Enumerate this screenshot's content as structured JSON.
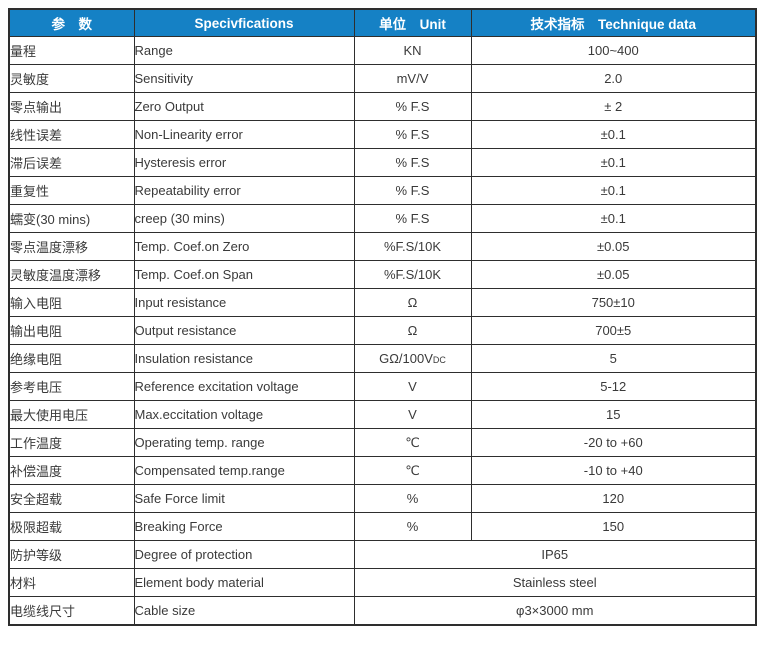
{
  "colors": {
    "header_bg": "#1581c5",
    "header_text": "#ffffff",
    "border": "#2e2e2e",
    "body_text": "#3a3a3a"
  },
  "table": {
    "headers": [
      {
        "label": "参　数"
      },
      {
        "label": "Specivfications"
      },
      {
        "label": "单位　Unit"
      },
      {
        "label": "技术指标　Technique data"
      }
    ],
    "rows": [
      {
        "param_cn": "量程",
        "spec": "Range",
        "unit": "KN",
        "value": "100~400"
      },
      {
        "param_cn": "灵敏度",
        "spec": "Sensitivity",
        "unit": "mV/V",
        "value": "2.0"
      },
      {
        "param_cn": "零点输出",
        "spec": "Zero Output",
        "unit": "% F.S",
        "value": "± 2"
      },
      {
        "param_cn": "线性误差",
        "spec": "Non-Linearity error",
        "unit": "% F.S",
        "value": "±0.1"
      },
      {
        "param_cn": "滞后误差",
        "spec": "Hysteresis error",
        "unit": "% F.S",
        "value": "±0.1"
      },
      {
        "param_cn": "重复性",
        "spec": "Repeatability error",
        "unit": "% F.S",
        "value": "±0.1"
      },
      {
        "param_cn": "蠕变(30 mins)",
        "spec": "creep (30 mins)",
        "unit": "% F.S",
        "value": "±0.1"
      },
      {
        "param_cn": "零点温度漂移",
        "spec": "Temp. Coef.on Zero",
        "unit": "%F.S/10K",
        "value": "±0.05"
      },
      {
        "param_cn": "灵敏度温度漂移",
        "spec": "Temp. Coef.on Span",
        "unit": "%F.S/10K",
        "value": "±0.05"
      },
      {
        "param_cn": "输入电阻",
        "spec": "Input resistance",
        "unit": "Ω",
        "value": "750±10"
      },
      {
        "param_cn": "输出电阻",
        "spec": "Output resistance",
        "unit": "Ω",
        "value": "700±5"
      },
      {
        "param_cn": "绝缘电阻",
        "spec": "Insulation resistance",
        "unit": "GΩ/100V",
        "unit_sub": "DC",
        "value": "5"
      },
      {
        "param_cn": "参考电压",
        "spec": "Reference excitation voltage",
        "unit": "V",
        "value": "5-12"
      },
      {
        "param_cn": "最大使用电压",
        "spec": "Max.eccitation voltage",
        "unit": "V",
        "value": "15"
      },
      {
        "param_cn": "工作温度",
        "spec": "Operating temp. range",
        "unit": "℃",
        "value": "-20 to +60"
      },
      {
        "param_cn": "补偿温度",
        "spec": "Compensated temp.range",
        "unit": "℃",
        "value": "-10 to +40"
      },
      {
        "param_cn": "安全超载",
        "spec": "Safe Force limit",
        "unit": "%",
        "value": "120"
      },
      {
        "param_cn": "极限超载",
        "spec": "Breaking Force",
        "unit": "%",
        "value": "150"
      },
      {
        "param_cn": "防护等级",
        "spec": "Degree of protection",
        "merged": true,
        "value": "IP65"
      },
      {
        "param_cn": "材料",
        "spec": "Element body material",
        "merged": true,
        "value": "Stainless steel"
      },
      {
        "param_cn": "电缆线尺寸",
        "spec": "Cable size",
        "merged": true,
        "value": "φ3×3000 mm"
      }
    ]
  }
}
